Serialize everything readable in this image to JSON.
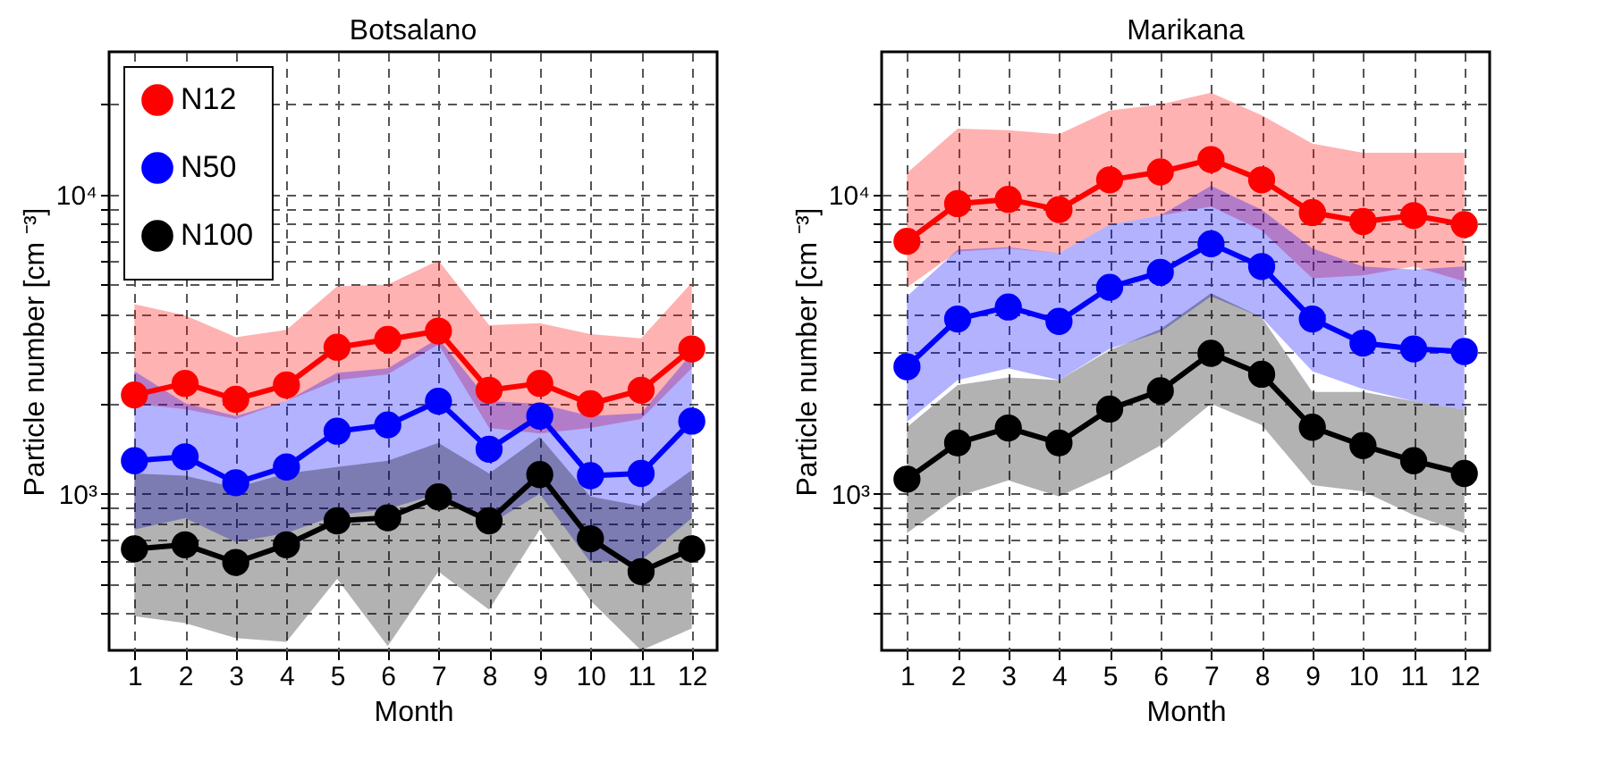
{
  "chart_data": [
    {
      "type": "line",
      "title": "Botsalano",
      "xlabel": "Month",
      "ylabel": "Particle number [cm ⁻³]",
      "x": [
        1,
        2,
        3,
        4,
        5,
        6,
        7,
        8,
        9,
        10,
        11,
        12
      ],
      "xlim": [
        0.5,
        12.5
      ],
      "xticks": [
        1,
        2,
        3,
        4,
        5,
        6,
        7,
        8,
        9,
        10,
        11,
        12
      ],
      "log": true,
      "ylim": [
        300,
        30000
      ],
      "yticks": [
        {
          "value": 400,
          "label": null
        },
        {
          "value": 500,
          "label": null
        },
        {
          "value": 600,
          "label": null
        },
        {
          "value": 700,
          "label": null
        },
        {
          "value": 800,
          "label": null
        },
        {
          "value": 900,
          "label": null
        },
        {
          "value": 1000,
          "label": "10³"
        },
        {
          "value": 2000,
          "label": null
        },
        {
          "value": 3000,
          "label": null
        },
        {
          "value": 4000,
          "label": null
        },
        {
          "value": 5000,
          "label": null
        },
        {
          "value": 6000,
          "label": null
        },
        {
          "value": 7000,
          "label": null
        },
        {
          "value": 8000,
          "label": null
        },
        {
          "value": 9000,
          "label": null
        },
        {
          "value": 10000,
          "label": "10⁴"
        },
        {
          "value": 20000,
          "label": null
        }
      ],
      "grid": true,
      "legend": "top left",
      "marker": "circle",
      "line_style": "solid",
      "series": [
        {
          "name": "N12",
          "color": "#ff0000",
          "values": [
            2140,
            2340,
            2070,
            2310,
            3090,
            3280,
            3500,
            2220,
            2340,
            2000,
            2220,
            3050
          ],
          "upper": [
            4300,
            3950,
            3340,
            3530,
            4940,
            5010,
            6030,
            3660,
            3720,
            3420,
            3310,
            5080
          ],
          "lower": [
            2000,
            1920,
            1780,
            2040,
            2400,
            2510,
            3160,
            1660,
            1590,
            1660,
            1780,
            2630
          ]
        },
        {
          "name": "N50",
          "color": "#0000ff",
          "values": [
            1290,
            1330,
            1090,
            1230,
            1620,
            1700,
            2040,
            1410,
            1820,
            1150,
            1170,
            1750
          ],
          "upper": [
            2570,
            2010,
            1820,
            2040,
            2540,
            2630,
            3310,
            2040,
            2000,
            1820,
            1860,
            2950
          ],
          "lower": [
            760,
            830,
            690,
            740,
            850,
            890,
            1000,
            790,
            1000,
            590,
            600,
            830
          ]
        },
        {
          "name": "N100",
          "color": "#000000",
          "values": [
            655,
            676,
            590,
            676,
            813,
            832,
            977,
            813,
            1160,
            708,
            550,
            655
          ],
          "upper": [
            1170,
            1150,
            1050,
            1170,
            1230,
            1290,
            1480,
            1170,
            1550,
            980,
            910,
            1200
          ],
          "lower": [
            390,
            370,
            330,
            320,
            520,
            310,
            550,
            410,
            760,
            440,
            300,
            355
          ]
        }
      ]
    },
    {
      "type": "line",
      "title": "Marikana",
      "xlabel": "Month",
      "ylabel": "Particle number [cm ⁻³]",
      "x": [
        1,
        2,
        3,
        4,
        5,
        6,
        7,
        8,
        9,
        10,
        11,
        12
      ],
      "xlim": [
        0.5,
        12.5
      ],
      "xticks": [
        1,
        2,
        3,
        4,
        5,
        6,
        7,
        8,
        9,
        10,
        11,
        12
      ],
      "log": true,
      "ylim": [
        300,
        30000
      ],
      "yticks": [
        {
          "value": 400,
          "label": null
        },
        {
          "value": 500,
          "label": null
        },
        {
          "value": 600,
          "label": null
        },
        {
          "value": 700,
          "label": null
        },
        {
          "value": 800,
          "label": null
        },
        {
          "value": 900,
          "label": null
        },
        {
          "value": 1000,
          "label": "10³"
        },
        {
          "value": 2000,
          "label": null
        },
        {
          "value": 3000,
          "label": null
        },
        {
          "value": 4000,
          "label": null
        },
        {
          "value": 5000,
          "label": null
        },
        {
          "value": 6000,
          "label": null
        },
        {
          "value": 7000,
          "label": null
        },
        {
          "value": 8000,
          "label": null
        },
        {
          "value": 9000,
          "label": null
        },
        {
          "value": 10000,
          "label": "10⁴"
        },
        {
          "value": 20000,
          "label": null
        }
      ],
      "grid": true,
      "marker": "circle",
      "line_style": "solid",
      "series": [
        {
          "color": "#ff0000",
          "values": [
            6980,
            9330,
            9640,
            8910,
            11200,
            11900,
            13100,
            11200,
            8710,
            8130,
            8510,
            7940
          ],
          "upper": [
            11800,
            16600,
            16400,
            15900,
            19100,
            20000,
            21900,
            18400,
            14800,
            13800,
            13800,
            13800
          ],
          "lower": [
            4900,
            6460,
            6610,
            6370,
            7940,
            8510,
            9120,
            7590,
            5250,
            5370,
            5750,
            5130
          ]
        },
        {
          "color": "#0000ff",
          "values": [
            2660,
            3840,
            4210,
            3770,
            4900,
            5500,
            6850,
            5750,
            3840,
            3190,
            3050,
            2990
          ],
          "upper": [
            4570,
            6550,
            6670,
            6370,
            7940,
            8510,
            10700,
            8910,
            6610,
            5750,
            5620,
            5750
          ],
          "lower": [
            1740,
            2400,
            2630,
            2400,
            3050,
            3470,
            4570,
            3890,
            2570,
            2240,
            2040,
            1910
          ]
        },
        {
          "color": "#000000",
          "values": [
            1120,
            1480,
            1660,
            1480,
            1920,
            2210,
            2950,
            2510,
            1670,
            1450,
            1290,
            1170
          ],
          "upper": [
            1670,
            2310,
            2450,
            2400,
            3020,
            3550,
            4680,
            3890,
            2190,
            2190,
            2040,
            1910
          ],
          "lower": [
            740,
            980,
            1110,
            980,
            1170,
            1450,
            2000,
            1700,
            1070,
            1020,
            850,
            740
          ]
        }
      ]
    }
  ]
}
